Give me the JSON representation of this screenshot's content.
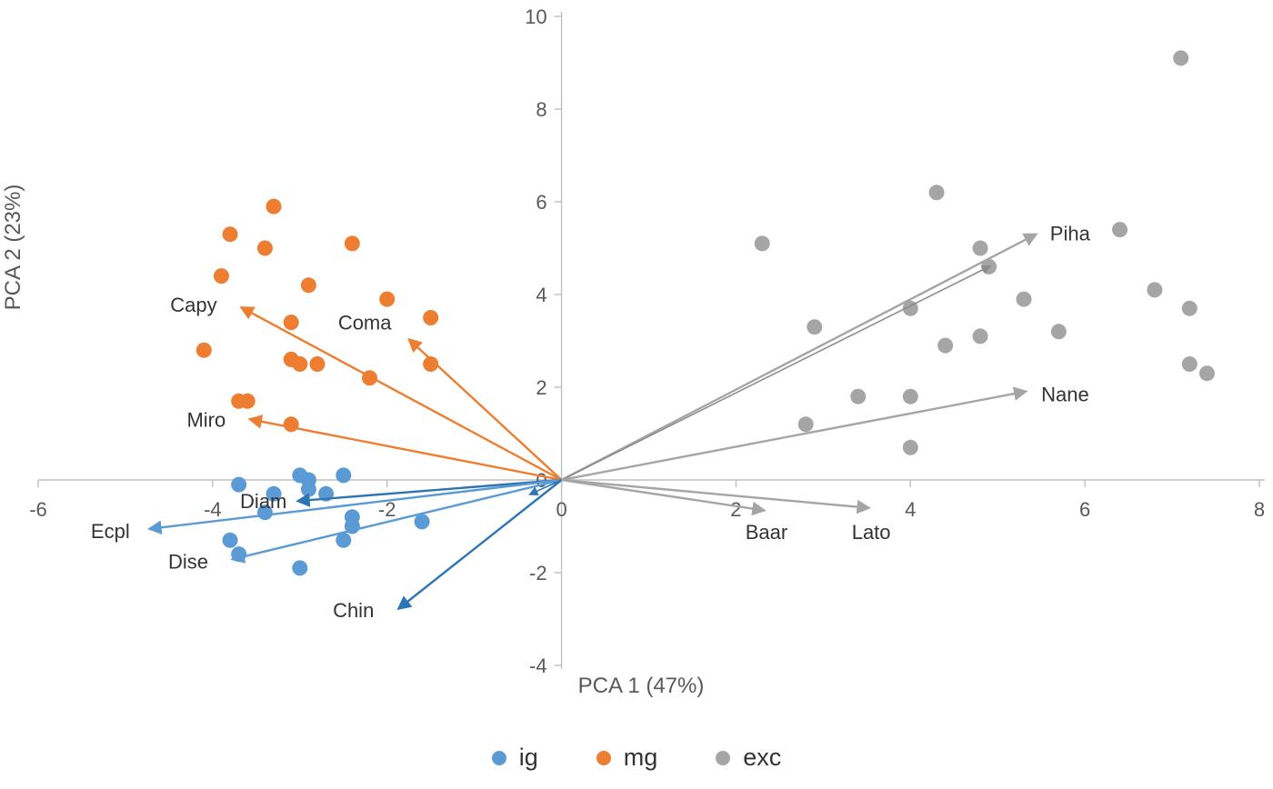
{
  "chart_data": {
    "type": "scatter",
    "title": "",
    "xlabel": "PCA 1 (47%)",
    "ylabel": "PCA 2 (23%)",
    "xlim": [
      -6,
      8
    ],
    "ylim": [
      -4,
      10
    ],
    "xticks": [
      -6,
      -4,
      -2,
      0,
      2,
      4,
      6,
      8
    ],
    "yticks": [
      -4,
      -2,
      0,
      2,
      4,
      6,
      8,
      10
    ],
    "grid": false,
    "legend_position": "bottom",
    "series": [
      {
        "name": "ig",
        "color": "#5B9BD5",
        "points": [
          [
            -3.7,
            -0.1
          ],
          [
            -3.3,
            -0.3
          ],
          [
            -3.0,
            0.1
          ],
          [
            -2.9,
            0.0
          ],
          [
            -2.9,
            -0.2
          ],
          [
            -2.7,
            -0.3
          ],
          [
            -2.5,
            0.1
          ],
          [
            -3.4,
            -0.7
          ],
          [
            -2.4,
            -0.8
          ],
          [
            -2.4,
            -1.0
          ],
          [
            -2.5,
            -1.3
          ],
          [
            -1.6,
            -0.9
          ],
          [
            -3.8,
            -1.3
          ],
          [
            -3.7,
            -1.6
          ],
          [
            -3.0,
            -1.9
          ]
        ]
      },
      {
        "name": "mg",
        "color": "#ED7D31",
        "points": [
          [
            -3.3,
            5.9
          ],
          [
            -3.8,
            5.3
          ],
          [
            -3.4,
            5.0
          ],
          [
            -2.4,
            5.1
          ],
          [
            -3.9,
            4.4
          ],
          [
            -2.9,
            4.2
          ],
          [
            -2.0,
            3.9
          ],
          [
            -1.5,
            3.5
          ],
          [
            -3.1,
            3.4
          ],
          [
            -4.1,
            2.8
          ],
          [
            -3.1,
            2.6
          ],
          [
            -3.0,
            2.5
          ],
          [
            -2.8,
            2.5
          ],
          [
            -2.2,
            2.2
          ],
          [
            -1.5,
            2.5
          ],
          [
            -3.7,
            1.7
          ],
          [
            -3.6,
            1.7
          ],
          [
            -3.1,
            1.2
          ]
        ]
      },
      {
        "name": "exc",
        "color": "#A5A5A5",
        "points": [
          [
            7.1,
            9.1
          ],
          [
            4.3,
            6.2
          ],
          [
            2.3,
            5.1
          ],
          [
            6.4,
            5.4
          ],
          [
            4.8,
            5.0
          ],
          [
            4.9,
            4.6
          ],
          [
            5.3,
            3.9
          ],
          [
            6.8,
            4.1
          ],
          [
            4.0,
            3.7
          ],
          [
            7.2,
            3.7
          ],
          [
            2.9,
            3.3
          ],
          [
            4.8,
            3.1
          ],
          [
            4.4,
            2.9
          ],
          [
            5.7,
            3.2
          ],
          [
            7.2,
            2.5
          ],
          [
            7.4,
            2.3
          ],
          [
            3.4,
            1.8
          ],
          [
            4.0,
            1.8
          ],
          [
            2.8,
            1.2
          ],
          [
            4.0,
            0.7
          ]
        ]
      }
    ],
    "vectors": [
      {
        "label": "Capy",
        "x": -3.65,
        "y": 3.7,
        "color": "#ED7D31",
        "label_x": -3.95,
        "label_y": 3.78,
        "anchor": "end"
      },
      {
        "label": "Coma",
        "x": -1.73,
        "y": 3.0,
        "color": "#ED7D31",
        "label_x": -1.95,
        "label_y": 3.4,
        "anchor": "end"
      },
      {
        "label": "Miro",
        "x": -3.55,
        "y": 1.3,
        "color": "#ED7D31",
        "label_x": -3.85,
        "label_y": 1.3,
        "anchor": "end"
      },
      {
        "label": "Diam",
        "x": -3.0,
        "y": -0.45,
        "color": "#2E75B6",
        "label_x": -3.15,
        "label_y": -0.45,
        "anchor": "end"
      },
      {
        "label": "Ecpl",
        "x": -4.7,
        "y": -1.05,
        "color": "#5B9BD5",
        "label_x": -4.95,
        "label_y": -1.1,
        "anchor": "end"
      },
      {
        "label": "Dise",
        "x": -3.75,
        "y": -1.7,
        "color": "#5B9BD5",
        "label_x": -4.05,
        "label_y": -1.75,
        "anchor": "end"
      },
      {
        "label": "Chin",
        "x": -1.85,
        "y": -2.75,
        "color": "#2E75B6",
        "label_x": -2.15,
        "label_y": -2.8,
        "anchor": "end"
      },
      {
        "label": "",
        "x": -0.35,
        "y": -0.3,
        "color": "#2E75B6",
        "label_x": 0,
        "label_y": 0,
        "anchor": "end"
      },
      {
        "label": "Piha",
        "x": 5.42,
        "y": 5.28,
        "color": "#A5A5A5",
        "label_x": 5.6,
        "label_y": 5.32,
        "anchor": "start"
      },
      {
        "label": "",
        "x": 4.9,
        "y": 4.6,
        "color": "#8C8C8C",
        "label_x": 0,
        "label_y": 0,
        "anchor": "start"
      },
      {
        "label": "Nane",
        "x": 5.3,
        "y": 1.9,
        "color": "#A5A5A5",
        "label_x": 5.5,
        "label_y": 1.85,
        "anchor": "start"
      },
      {
        "label": "Baar",
        "x": 2.3,
        "y": -0.65,
        "color": "#A5A5A5",
        "label_x": 2.35,
        "label_y": -1.12,
        "anchor": "middle"
      },
      {
        "label": "Lato",
        "x": 3.5,
        "y": -0.6,
        "color": "#A5A5A5",
        "label_x": 3.55,
        "label_y": -1.12,
        "anchor": "middle"
      }
    ]
  },
  "colors": {
    "axis_line": "#BFBFBF",
    "tick_text": "#595959",
    "label_text": "#333333",
    "background": "#FFFFFF"
  }
}
